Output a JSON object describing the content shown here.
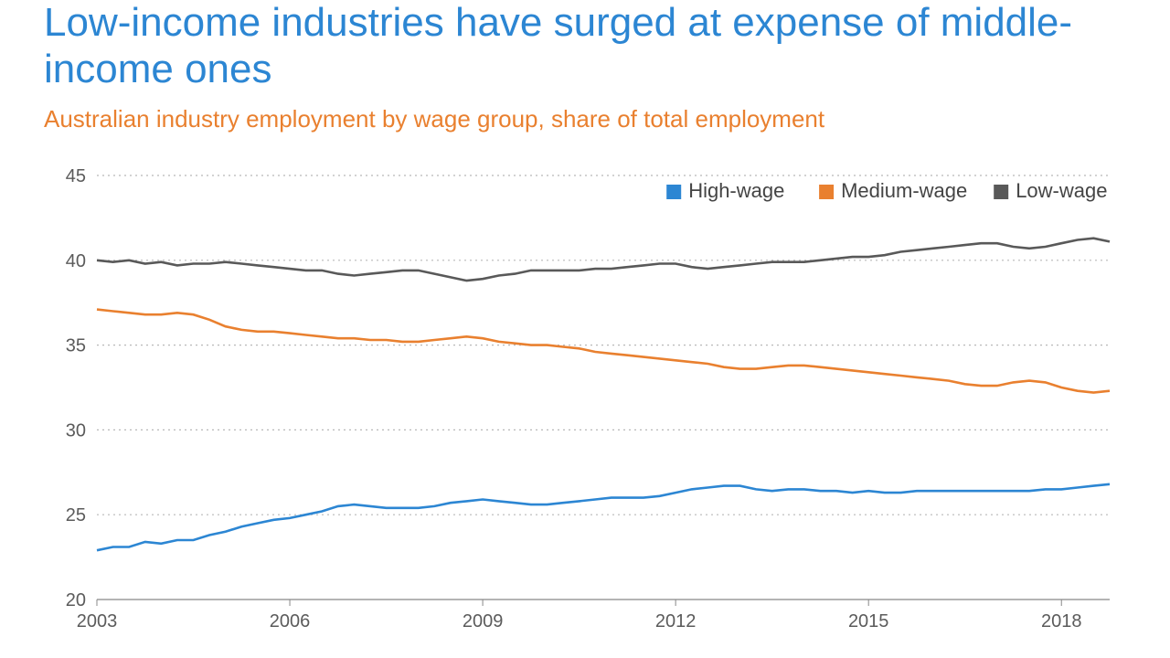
{
  "title_text": "Low-income industries have surged at expense of middle-income ones",
  "title_color": "#2c86d3",
  "subtitle_text": "Australian industry employment by wage group, share of total employment",
  "subtitle_color": "#e9802f",
  "chart": {
    "type": "line",
    "background_color": "#ffffff",
    "grid_color": "#b8b8b8",
    "axis_color": "#888888",
    "tick_label_color": "#5b5b5b",
    "tick_fontsize": 20,
    "line_width": 2.6,
    "xlim": [
      2003,
      2018.75
    ],
    "ylim": [
      20,
      45
    ],
    "ytick_step": 5,
    "yticks": [
      20,
      25,
      30,
      35,
      40,
      45
    ],
    "xticks": [
      2003,
      2006,
      2009,
      2012,
      2015,
      2018
    ],
    "legend": {
      "fontsize": 22,
      "items": [
        {
          "label": "High-wage",
          "color": "#2c86d3"
        },
        {
          "label": "Medium-wage",
          "color": "#e9802f"
        },
        {
          "label": "Low-wage",
          "color": "#595959"
        }
      ]
    },
    "series": [
      {
        "name": "High-wage",
        "color": "#2c86d3",
        "x": [
          2003,
          2003.25,
          2003.5,
          2003.75,
          2004,
          2004.25,
          2004.5,
          2004.75,
          2005,
          2005.25,
          2005.5,
          2005.75,
          2006,
          2006.25,
          2006.5,
          2006.75,
          2007,
          2007.25,
          2007.5,
          2007.75,
          2008,
          2008.25,
          2008.5,
          2008.75,
          2009,
          2009.25,
          2009.5,
          2009.75,
          2010,
          2010.25,
          2010.5,
          2010.75,
          2011,
          2011.25,
          2011.5,
          2011.75,
          2012,
          2012.25,
          2012.5,
          2012.75,
          2013,
          2013.25,
          2013.5,
          2013.75,
          2014,
          2014.25,
          2014.5,
          2014.75,
          2015,
          2015.25,
          2015.5,
          2015.75,
          2016,
          2016.25,
          2016.5,
          2016.75,
          2017,
          2017.25,
          2017.5,
          2017.75,
          2018,
          2018.25,
          2018.5,
          2018.75
        ],
        "y": [
          22.9,
          23.1,
          23.1,
          23.4,
          23.3,
          23.5,
          23.5,
          23.8,
          24.0,
          24.3,
          24.5,
          24.7,
          24.8,
          25.0,
          25.2,
          25.5,
          25.6,
          25.5,
          25.4,
          25.4,
          25.4,
          25.5,
          25.7,
          25.8,
          25.9,
          25.8,
          25.7,
          25.6,
          25.6,
          25.7,
          25.8,
          25.9,
          26.0,
          26.0,
          26.0,
          26.1,
          26.3,
          26.5,
          26.6,
          26.7,
          26.7,
          26.5,
          26.4,
          26.5,
          26.5,
          26.4,
          26.4,
          26.3,
          26.4,
          26.3,
          26.3,
          26.4,
          26.4,
          26.4,
          26.4,
          26.4,
          26.4,
          26.4,
          26.4,
          26.5,
          26.5,
          26.6,
          26.7,
          26.8
        ]
      },
      {
        "name": "Medium-wage",
        "color": "#e9802f",
        "x": [
          2003,
          2003.25,
          2003.5,
          2003.75,
          2004,
          2004.25,
          2004.5,
          2004.75,
          2005,
          2005.25,
          2005.5,
          2005.75,
          2006,
          2006.25,
          2006.5,
          2006.75,
          2007,
          2007.25,
          2007.5,
          2007.75,
          2008,
          2008.25,
          2008.5,
          2008.75,
          2009,
          2009.25,
          2009.5,
          2009.75,
          2010,
          2010.25,
          2010.5,
          2010.75,
          2011,
          2011.25,
          2011.5,
          2011.75,
          2012,
          2012.25,
          2012.5,
          2012.75,
          2013,
          2013.25,
          2013.5,
          2013.75,
          2014,
          2014.25,
          2014.5,
          2014.75,
          2015,
          2015.25,
          2015.5,
          2015.75,
          2016,
          2016.25,
          2016.5,
          2016.75,
          2017,
          2017.25,
          2017.5,
          2017.75,
          2018,
          2018.25,
          2018.5,
          2018.75
        ],
        "y": [
          37.1,
          37.0,
          36.9,
          36.8,
          36.8,
          36.9,
          36.8,
          36.5,
          36.1,
          35.9,
          35.8,
          35.8,
          35.7,
          35.6,
          35.5,
          35.4,
          35.4,
          35.3,
          35.3,
          35.2,
          35.2,
          35.3,
          35.4,
          35.5,
          35.4,
          35.2,
          35.1,
          35.0,
          35.0,
          34.9,
          34.8,
          34.6,
          34.5,
          34.4,
          34.3,
          34.2,
          34.1,
          34.0,
          33.9,
          33.7,
          33.6,
          33.6,
          33.7,
          33.8,
          33.8,
          33.7,
          33.6,
          33.5,
          33.4,
          33.3,
          33.2,
          33.1,
          33.0,
          32.9,
          32.7,
          32.6,
          32.6,
          32.8,
          32.9,
          32.8,
          32.5,
          32.3,
          32.2,
          32.3
        ]
      },
      {
        "name": "Low-wage",
        "color": "#595959",
        "x": [
          2003,
          2003.25,
          2003.5,
          2003.75,
          2004,
          2004.25,
          2004.5,
          2004.75,
          2005,
          2005.25,
          2005.5,
          2005.75,
          2006,
          2006.25,
          2006.5,
          2006.75,
          2007,
          2007.25,
          2007.5,
          2007.75,
          2008,
          2008.25,
          2008.5,
          2008.75,
          2009,
          2009.25,
          2009.5,
          2009.75,
          2010,
          2010.25,
          2010.5,
          2010.75,
          2011,
          2011.25,
          2011.5,
          2011.75,
          2012,
          2012.25,
          2012.5,
          2012.75,
          2013,
          2013.25,
          2013.5,
          2013.75,
          2014,
          2014.25,
          2014.5,
          2014.75,
          2015,
          2015.25,
          2015.5,
          2015.75,
          2016,
          2016.25,
          2016.5,
          2016.75,
          2017,
          2017.25,
          2017.5,
          2017.75,
          2018,
          2018.25,
          2018.5,
          2018.75
        ],
        "y": [
          40.0,
          39.9,
          40.0,
          39.8,
          39.9,
          39.7,
          39.8,
          39.8,
          39.9,
          39.8,
          39.7,
          39.6,
          39.5,
          39.4,
          39.4,
          39.2,
          39.1,
          39.2,
          39.3,
          39.4,
          39.4,
          39.2,
          39.0,
          38.8,
          38.9,
          39.1,
          39.2,
          39.4,
          39.4,
          39.4,
          39.4,
          39.5,
          39.5,
          39.6,
          39.7,
          39.8,
          39.8,
          39.6,
          39.5,
          39.6,
          39.7,
          39.8,
          39.9,
          39.9,
          39.9,
          40.0,
          40.1,
          40.2,
          40.2,
          40.3,
          40.5,
          40.6,
          40.7,
          40.8,
          40.9,
          41.0,
          41.0,
          40.8,
          40.7,
          40.8,
          41.0,
          41.2,
          41.3,
          41.1
        ]
      }
    ]
  }
}
